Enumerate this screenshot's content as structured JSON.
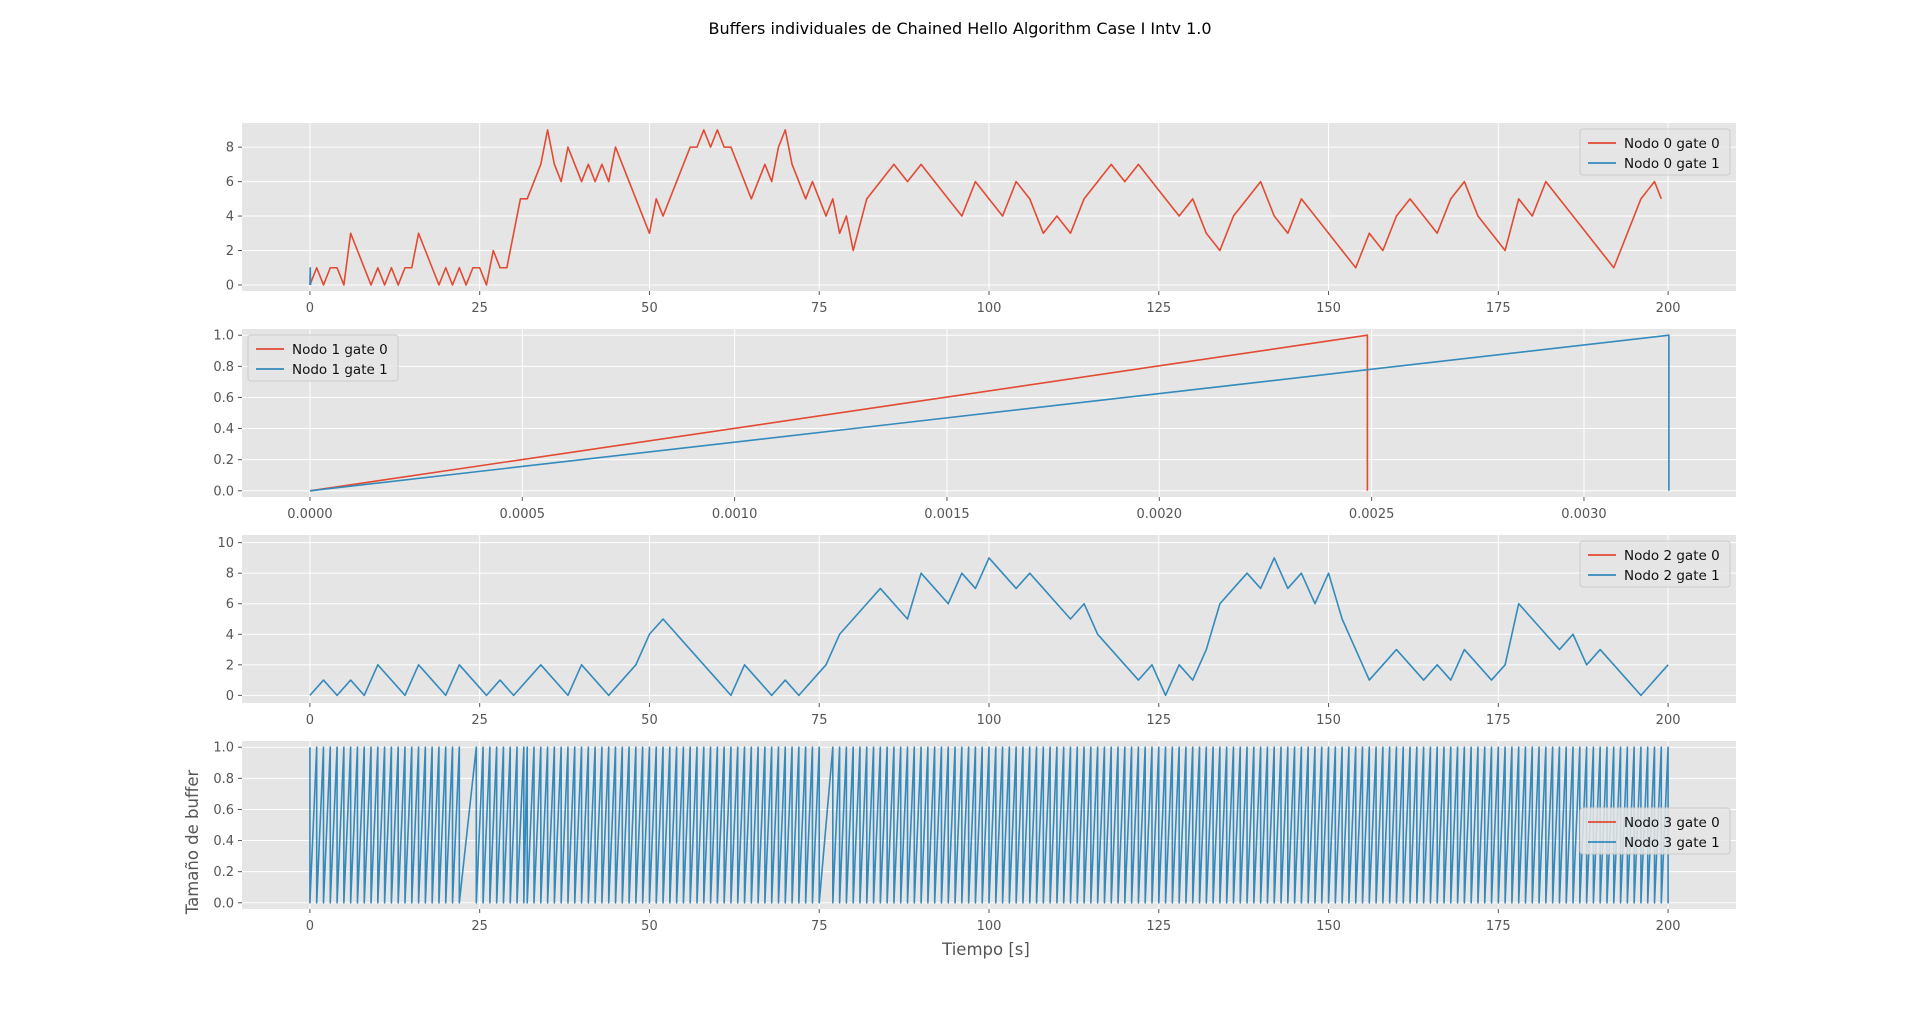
{
  "figure": {
    "title": "Buffers individuales de Chained Hello Algorithm Case I Intv 1.0",
    "xlabel": "Tiempo [s]",
    "ylabel": "Tamaño de buffer"
  },
  "colors": {
    "gate0": "#E24A33",
    "gate1": "#348ABD",
    "axes_bg": "#E5E5E5",
    "grid": "#FFFFFF"
  },
  "chart_data": [
    {
      "type": "line",
      "xlim": [
        -10,
        210
      ],
      "ylim": [
        -0.35,
        9.4
      ],
      "xticks": [
        0,
        25,
        50,
        75,
        100,
        125,
        150,
        175,
        200
      ],
      "xtick_labels": [
        "0",
        "25",
        "50",
        "75",
        "100",
        "125",
        "150",
        "175",
        "200"
      ],
      "yticks": [
        0,
        2,
        4,
        6,
        8
      ],
      "ytick_labels": [
        "0",
        "2",
        "4",
        "6",
        "8"
      ],
      "legend": "upper right",
      "series": [
        {
          "name": "Nodo 0 gate 0",
          "x": [
            0,
            1,
            2,
            3,
            4,
            5,
            6,
            7,
            8,
            9,
            10,
            11,
            12,
            13,
            14,
            15,
            16,
            17,
            18,
            19,
            20,
            21,
            22,
            23,
            24,
            25,
            26,
            27,
            28,
            29,
            30,
            31,
            32,
            33,
            34,
            35,
            36,
            37,
            38,
            39,
            40,
            41,
            42,
            43,
            44,
            45,
            46,
            47,
            48,
            49,
            50,
            51,
            52,
            53,
            54,
            55,
            56,
            57,
            58,
            59,
            60,
            61,
            62,
            63,
            64,
            65,
            66,
            67,
            68,
            69,
            70,
            71,
            72,
            73,
            74,
            75,
            76,
            77,
            78,
            79,
            80,
            82,
            84,
            86,
            88,
            90,
            92,
            94,
            96,
            98,
            100,
            102,
            104,
            106,
            108,
            110,
            112,
            114,
            116,
            118,
            120,
            122,
            124,
            126,
            128,
            130,
            132,
            134,
            136,
            138,
            140,
            142,
            144,
            146,
            148,
            150,
            152,
            154,
            156,
            158,
            160,
            162,
            164,
            166,
            168,
            170,
            172,
            174,
            176,
            178,
            180,
            182,
            184,
            186,
            188,
            190,
            192,
            194,
            196,
            198,
            199
          ],
          "y": [
            0,
            1,
            0,
            1,
            1,
            0,
            3,
            2,
            1,
            0,
            1,
            0,
            1,
            0,
            1,
            1,
            3,
            2,
            1,
            0,
            1,
            0,
            1,
            0,
            1,
            1,
            0,
            2,
            1,
            1,
            3,
            5,
            5,
            6,
            7,
            9,
            7,
            6,
            8,
            7,
            6,
            7,
            6,
            7,
            6,
            8,
            7,
            6,
            5,
            4,
            3,
            5,
            4,
            5,
            6,
            7,
            8,
            8,
            9,
            8,
            9,
            8,
            8,
            7,
            6,
            5,
            6,
            7,
            6,
            8,
            9,
            7,
            6,
            5,
            6,
            5,
            4,
            5,
            3,
            4,
            2,
            5,
            6,
            7,
            6,
            7,
            6,
            5,
            4,
            6,
            5,
            4,
            6,
            5,
            3,
            4,
            3,
            5,
            6,
            7,
            6,
            7,
            6,
            5,
            4,
            5,
            3,
            2,
            4,
            5,
            6,
            4,
            3,
            5,
            4,
            3,
            2,
            1,
            3,
            2,
            4,
            5,
            4,
            3,
            5,
            6,
            4,
            3,
            2,
            5,
            4,
            6,
            5,
            4,
            3,
            2,
            1,
            3,
            5,
            6,
            5
          ]
        },
        {
          "name": "Nodo 0 gate 1",
          "x": [
            0,
            0.05,
            0.1
          ],
          "y": [
            0,
            1,
            0
          ]
        }
      ]
    },
    {
      "type": "line",
      "xlim": [
        -0.00016,
        0.003358
      ],
      "ylim": [
        -0.04,
        1.04
      ],
      "xticks": [
        0,
        0.0005,
        0.001,
        0.0015,
        0.002,
        0.0025,
        0.003
      ],
      "xtick_labels": [
        "0.0000",
        "0.0005",
        "0.0010",
        "0.0015",
        "0.0020",
        "0.0025",
        "0.0030"
      ],
      "yticks": [
        0,
        0.2,
        0.4,
        0.6,
        0.8,
        1.0
      ],
      "ytick_labels": [
        "0.0",
        "0.2",
        "0.4",
        "0.6",
        "0.8",
        "1.0"
      ],
      "legend": "upper left",
      "series": [
        {
          "name": "Nodo 1 gate 0",
          "x": [
            0,
            0.00249,
            0.00249
          ],
          "y": [
            0,
            1,
            0
          ]
        },
        {
          "name": "Nodo 1 gate 1",
          "x": [
            0,
            0.0032,
            0.0032
          ],
          "y": [
            0,
            1,
            0
          ]
        }
      ]
    },
    {
      "type": "line",
      "xlim": [
        -10,
        210
      ],
      "ylim": [
        -0.5,
        10.5
      ],
      "xticks": [
        0,
        25,
        50,
        75,
        100,
        125,
        150,
        175,
        200
      ],
      "xtick_labels": [
        "0",
        "25",
        "50",
        "75",
        "100",
        "125",
        "150",
        "175",
        "200"
      ],
      "yticks": [
        0,
        2,
        4,
        6,
        8,
        10
      ],
      "ytick_labels": [
        "0",
        "2",
        "4",
        "6",
        "8",
        "10"
      ],
      "legend": "upper right",
      "series": [
        {
          "name": "Nodo 2 gate 0",
          "x": [],
          "y": []
        },
        {
          "name": "Nodo 2 gate 1",
          "x": [
            0,
            2,
            4,
            6,
            8,
            10,
            12,
            14,
            16,
            18,
            20,
            22,
            24,
            26,
            28,
            30,
            32,
            34,
            36,
            38,
            40,
            42,
            44,
            46,
            48,
            50,
            52,
            54,
            56,
            58,
            60,
            62,
            64,
            66,
            68,
            70,
            72,
            74,
            76,
            78,
            80,
            82,
            84,
            86,
            88,
            90,
            92,
            94,
            96,
            98,
            100,
            102,
            104,
            106,
            108,
            110,
            112,
            114,
            116,
            118,
            120,
            122,
            124,
            126,
            128,
            130,
            132,
            134,
            136,
            138,
            140,
            142,
            144,
            146,
            148,
            150,
            152,
            154,
            156,
            158,
            160,
            162,
            164,
            166,
            168,
            170,
            172,
            174,
            176,
            178,
            180,
            182,
            184,
            186,
            188,
            190,
            192,
            194,
            196,
            198,
            200
          ],
          "y": [
            0,
            1,
            0,
            1,
            0,
            2,
            1,
            0,
            2,
            1,
            0,
            2,
            1,
            0,
            1,
            0,
            1,
            2,
            1,
            0,
            2,
            1,
            0,
            1,
            2,
            4,
            5,
            4,
            3,
            2,
            1,
            0,
            2,
            1,
            0,
            1,
            0,
            1,
            2,
            4,
            5,
            6,
            7,
            6,
            5,
            8,
            7,
            6,
            8,
            7,
            9,
            8,
            7,
            8,
            7,
            6,
            5,
            6,
            4,
            3,
            2,
            1,
            2,
            0,
            2,
            1,
            3,
            6,
            7,
            8,
            7,
            9,
            7,
            8,
            6,
            8,
            5,
            3,
            1,
            2,
            3,
            2,
            1,
            2,
            1,
            3,
            2,
            1,
            2,
            6,
            5,
            4,
            3,
            4,
            2,
            3,
            2,
            1,
            0,
            1,
            2
          ]
        }
      ]
    },
    {
      "type": "line",
      "xlim": [
        -10,
        210
      ],
      "ylim": [
        -0.04,
        1.04
      ],
      "xticks": [
        0,
        25,
        50,
        75,
        100,
        125,
        150,
        175,
        200
      ],
      "xtick_labels": [
        "0",
        "25",
        "50",
        "75",
        "100",
        "125",
        "150",
        "175",
        "200"
      ],
      "yticks": [
        0,
        0.2,
        0.4,
        0.6,
        0.8,
        1.0
      ],
      "ytick_labels": [
        "0.0",
        "0.2",
        "0.4",
        "0.6",
        "0.8",
        "1.0"
      ],
      "legend": "center right",
      "series": [
        {
          "name": "Nodo 3 gate 0",
          "x": [],
          "y": []
        },
        {
          "name": "Nodo 3 gate 1",
          "pattern": "sawtooth",
          "amplitude": 1,
          "segments": [
            {
              "start": 0,
              "end": 22.5,
              "period": 1.0
            },
            {
              "start": 24.5,
              "end": 32,
              "period": 1.0
            },
            {
              "start": 32,
              "end": 75,
              "period": 1.0
            },
            {
              "start": 77,
              "end": 200,
              "period": 1.0
            }
          ]
        }
      ]
    }
  ]
}
